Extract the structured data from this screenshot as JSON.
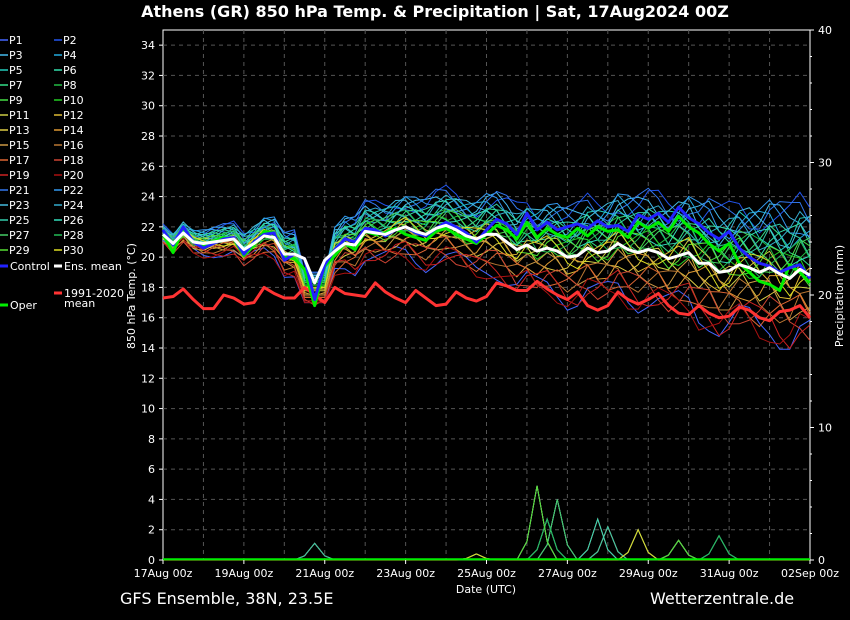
{
  "chart_data": {
    "type": "line",
    "title": "Athens  (GR)  850 hPa Temp. & Precipitation | Sat, 17Aug2024 00Z",
    "xlabel": "Date (UTC)",
    "ylabel": "850 hPa Temp. (°C)",
    "y2label": "Precipitation (mm)",
    "ylim": [
      0,
      35
    ],
    "y2lim": [
      0,
      40
    ],
    "yticks": [
      0,
      2,
      4,
      6,
      8,
      10,
      12,
      14,
      16,
      18,
      20,
      22,
      24,
      26,
      28,
      30,
      32,
      34
    ],
    "y2ticks": [
      0,
      10,
      20,
      30,
      40
    ],
    "x_tick_labels": [
      "17Aug 00z",
      "19Aug 00z",
      "21Aug 00z",
      "23Aug 00z",
      "25Aug 00z",
      "27Aug 00z",
      "29Aug 00z",
      "31Aug 00z",
      "02Sep 00z"
    ],
    "x_range_hours": [
      0,
      384
    ],
    "step_hours": 6,
    "grid": true,
    "legend_position": "left",
    "series": [
      {
        "name": "Control",
        "color": "#2222ff",
        "width": 3,
        "anchors": [
          [
            0,
            21.8
          ],
          [
            6,
            20.8
          ],
          [
            12,
            22
          ],
          [
            18,
            21
          ],
          [
            24,
            20.6
          ],
          [
            36,
            21.2
          ],
          [
            42,
            21.3
          ],
          [
            48,
            20.2
          ],
          [
            54,
            21
          ],
          [
            60,
            21.5
          ],
          [
            66,
            21.6
          ],
          [
            72,
            19.8
          ],
          [
            78,
            20.2
          ],
          [
            84,
            19.9
          ],
          [
            90,
            17.2
          ],
          [
            96,
            19.5
          ],
          [
            102,
            20.5
          ],
          [
            108,
            21.2
          ],
          [
            114,
            21
          ],
          [
            120,
            21.9
          ],
          [
            126,
            21.8
          ],
          [
            132,
            21.4
          ],
          [
            138,
            21.8
          ],
          [
            144,
            22
          ],
          [
            150,
            21.6
          ],
          [
            156,
            21.4
          ],
          [
            162,
            21.9
          ],
          [
            168,
            22.3
          ],
          [
            174,
            22
          ],
          [
            180,
            21.6
          ],
          [
            186,
            21
          ],
          [
            192,
            21.8
          ],
          [
            198,
            22.5
          ],
          [
            204,
            22.2
          ],
          [
            210,
            21.5
          ],
          [
            216,
            22.9
          ],
          [
            222,
            21.8
          ],
          [
            228,
            22.3
          ],
          [
            234,
            21.8
          ],
          [
            240,
            22
          ],
          [
            246,
            22.2
          ],
          [
            252,
            21.9
          ],
          [
            258,
            22.4
          ],
          [
            264,
            22
          ],
          [
            270,
            22.1
          ],
          [
            276,
            21.7
          ],
          [
            282,
            22.8
          ],
          [
            288,
            22.5
          ],
          [
            294,
            22.9
          ],
          [
            300,
            22.3
          ],
          [
            306,
            23.3
          ],
          [
            312,
            22.6
          ],
          [
            318,
            22.2
          ],
          [
            324,
            21.6
          ],
          [
            330,
            21.2
          ],
          [
            336,
            21.7
          ],
          [
            342,
            20.6
          ],
          [
            348,
            20
          ],
          [
            354,
            19.6
          ],
          [
            360,
            19.4
          ],
          [
            366,
            19
          ],
          [
            372,
            19.3
          ],
          [
            378,
            19.5
          ],
          [
            384,
            18.6
          ]
        ]
      },
      {
        "name": "Oper",
        "color": "#00ee00",
        "width": 3,
        "anchors": [
          [
            0,
            21.5
          ],
          [
            6,
            20.3
          ],
          [
            12,
            21.9
          ],
          [
            18,
            21
          ],
          [
            24,
            20.8
          ],
          [
            36,
            21.3
          ],
          [
            42,
            21.2
          ],
          [
            48,
            20.1
          ],
          [
            54,
            20.8
          ],
          [
            60,
            21.7
          ],
          [
            66,
            21.6
          ],
          [
            72,
            20
          ],
          [
            78,
            19.9
          ],
          [
            84,
            19.2
          ],
          [
            90,
            16.8
          ],
          [
            96,
            19.4
          ],
          [
            102,
            20.1
          ],
          [
            108,
            20.9
          ],
          [
            114,
            20.5
          ],
          [
            120,
            21.7
          ],
          [
            126,
            21.5
          ],
          [
            132,
            21.6
          ],
          [
            138,
            21.9
          ],
          [
            144,
            21.5
          ],
          [
            150,
            21.3
          ],
          [
            156,
            21.1
          ],
          [
            162,
            21.7
          ],
          [
            168,
            21.9
          ],
          [
            174,
            21.5
          ],
          [
            180,
            21.2
          ],
          [
            186,
            20.9
          ],
          [
            192,
            21.5
          ],
          [
            198,
            22.1
          ],
          [
            204,
            21.8
          ],
          [
            210,
            21.2
          ],
          [
            216,
            22.3
          ],
          [
            222,
            21.3
          ],
          [
            228,
            21.9
          ],
          [
            234,
            21.5
          ],
          [
            240,
            21.3
          ],
          [
            246,
            21.9
          ],
          [
            252,
            21.4
          ],
          [
            258,
            22
          ],
          [
            264,
            21.7
          ],
          [
            270,
            21.8
          ],
          [
            276,
            21.3
          ],
          [
            282,
            22.3
          ],
          [
            288,
            21.9
          ],
          [
            294,
            22.3
          ],
          [
            300,
            21.7
          ],
          [
            306,
            22.7
          ],
          [
            312,
            22
          ],
          [
            318,
            21.6
          ],
          [
            324,
            20.9
          ],
          [
            330,
            20.4
          ],
          [
            336,
            20.9
          ],
          [
            342,
            19.6
          ],
          [
            348,
            19
          ],
          [
            354,
            18.4
          ],
          [
            360,
            18.2
          ],
          [
            366,
            17.8
          ],
          [
            372,
            19.5
          ],
          [
            378,
            19
          ],
          [
            384,
            18.3
          ]
        ]
      },
      {
        "name": "Ens. mean",
        "color": "#ffffff",
        "width": 3,
        "anchors": [
          [
            0,
            21.5
          ],
          [
            6,
            20.9
          ],
          [
            12,
            21.6
          ],
          [
            18,
            21
          ],
          [
            24,
            20.9
          ],
          [
            30,
            21
          ],
          [
            36,
            21.1
          ],
          [
            42,
            21.2
          ],
          [
            48,
            20.5
          ],
          [
            54,
            20.9
          ],
          [
            60,
            21.4
          ],
          [
            66,
            21.3
          ],
          [
            72,
            20.2
          ],
          [
            78,
            20.2
          ],
          [
            84,
            19.9
          ],
          [
            90,
            18.3
          ],
          [
            96,
            19.8
          ],
          [
            102,
            20.4
          ],
          [
            108,
            20.9
          ],
          [
            114,
            20.8
          ],
          [
            120,
            21.7
          ],
          [
            126,
            21.6
          ],
          [
            132,
            21.5
          ],
          [
            138,
            21.8
          ],
          [
            144,
            22
          ],
          [
            150,
            21.7
          ],
          [
            156,
            21.5
          ],
          [
            162,
            21.9
          ],
          [
            168,
            22.1
          ],
          [
            174,
            21.8
          ],
          [
            180,
            21.4
          ],
          [
            186,
            21.2
          ],
          [
            192,
            21.5
          ],
          [
            198,
            21.5
          ],
          [
            204,
            21
          ],
          [
            210,
            20.5
          ],
          [
            216,
            20.8
          ],
          [
            222,
            20.4
          ],
          [
            228,
            20.6
          ],
          [
            234,
            20.4
          ],
          [
            240,
            20
          ],
          [
            246,
            20.1
          ],
          [
            252,
            20.6
          ],
          [
            258,
            20.3
          ],
          [
            264,
            20.4
          ],
          [
            270,
            20.9
          ],
          [
            276,
            20.5
          ],
          [
            282,
            20.3
          ],
          [
            288,
            20.5
          ],
          [
            294,
            20.3
          ],
          [
            300,
            19.9
          ],
          [
            306,
            20.1
          ],
          [
            312,
            20.3
          ],
          [
            318,
            19.6
          ],
          [
            324,
            19.6
          ],
          [
            330,
            19
          ],
          [
            336,
            19.1
          ],
          [
            342,
            19.5
          ],
          [
            348,
            19.3
          ],
          [
            354,
            19
          ],
          [
            360,
            19.3
          ],
          [
            366,
            18.9
          ],
          [
            372,
            18.6
          ],
          [
            378,
            19.2
          ],
          [
            384,
            18.8
          ]
        ]
      },
      {
        "name": "1991-2020 mean",
        "color": "#ff3333",
        "width": 3,
        "anchors": [
          [
            0,
            17.3
          ],
          [
            6,
            17.4
          ],
          [
            12,
            17.9
          ],
          [
            18,
            17.2
          ],
          [
            24,
            16.6
          ],
          [
            30,
            16.6
          ],
          [
            36,
            17.5
          ],
          [
            42,
            17.3
          ],
          [
            48,
            16.9
          ],
          [
            54,
            17
          ],
          [
            60,
            18
          ],
          [
            66,
            17.6
          ],
          [
            72,
            17.3
          ],
          [
            78,
            17.3
          ],
          [
            84,
            18
          ],
          [
            90,
            17.5
          ],
          [
            96,
            17
          ],
          [
            102,
            18
          ],
          [
            108,
            17.6
          ],
          [
            114,
            17.5
          ],
          [
            120,
            17.4
          ],
          [
            126,
            18.3
          ],
          [
            132,
            17.7
          ],
          [
            138,
            17.3
          ],
          [
            144,
            17
          ],
          [
            150,
            17.8
          ],
          [
            156,
            17.3
          ],
          [
            162,
            16.8
          ],
          [
            168,
            16.9
          ],
          [
            174,
            17.7
          ],
          [
            180,
            17.3
          ],
          [
            186,
            17.1
          ],
          [
            192,
            17.4
          ],
          [
            198,
            18.3
          ],
          [
            204,
            18.1
          ],
          [
            210,
            17.8
          ],
          [
            216,
            17.8
          ],
          [
            222,
            18.4
          ],
          [
            228,
            17.9
          ],
          [
            234,
            17.5
          ],
          [
            240,
            17.2
          ],
          [
            246,
            17.7
          ],
          [
            252,
            16.8
          ],
          [
            258,
            16.5
          ],
          [
            264,
            16.8
          ],
          [
            270,
            17.7
          ],
          [
            276,
            17.2
          ],
          [
            282,
            16.9
          ],
          [
            288,
            17.2
          ],
          [
            294,
            17.6
          ],
          [
            300,
            16.8
          ],
          [
            306,
            16.3
          ],
          [
            312,
            16.2
          ],
          [
            318,
            16.8
          ],
          [
            324,
            16.3
          ],
          [
            330,
            16
          ],
          [
            336,
            16.1
          ],
          [
            342,
            16.7
          ],
          [
            348,
            16.5
          ],
          [
            354,
            16
          ],
          [
            360,
            15.8
          ],
          [
            366,
            16.4
          ],
          [
            372,
            16.5
          ],
          [
            378,
            16.8
          ],
          [
            384,
            16
          ]
        ]
      }
    ],
    "members": [
      {
        "name": "P1",
        "color": "#4466ff"
      },
      {
        "name": "P2",
        "color": "#2255ee"
      },
      {
        "name": "P3",
        "color": "#44bbee"
      },
      {
        "name": "P4",
        "color": "#22aadd"
      },
      {
        "name": "P5",
        "color": "#22ccbb"
      },
      {
        "name": "P6",
        "color": "#33ddaa"
      },
      {
        "name": "P7",
        "color": "#33dd88"
      },
      {
        "name": "P8",
        "color": "#22bb44"
      },
      {
        "name": "P9",
        "color": "#44dd44"
      },
      {
        "name": "P10",
        "color": "#22cc22"
      },
      {
        "name": "P11",
        "color": "#cccc44"
      },
      {
        "name": "P12",
        "color": "#ddbb33"
      },
      {
        "name": "P13",
        "color": "#ddcc44"
      },
      {
        "name": "P14",
        "color": "#dd9933"
      },
      {
        "name": "P15",
        "color": "#cc9944"
      },
      {
        "name": "P16",
        "color": "#bb7733"
      },
      {
        "name": "P17",
        "color": "#dd6633"
      },
      {
        "name": "P18",
        "color": "#cc4433"
      },
      {
        "name": "P19",
        "color": "#cc2222"
      },
      {
        "name": "P20",
        "color": "#aa1111"
      },
      {
        "name": "P21",
        "color": "#3377ee"
      },
      {
        "name": "P22",
        "color": "#3399ee"
      },
      {
        "name": "P23",
        "color": "#44bbdd"
      },
      {
        "name": "P24",
        "color": "#33aacc"
      },
      {
        "name": "P25",
        "color": "#33ccaa"
      },
      {
        "name": "P26",
        "color": "#33ddbb"
      },
      {
        "name": "P27",
        "color": "#44cc66"
      },
      {
        "name": "P28",
        "color": "#22bb55"
      },
      {
        "name": "P29",
        "color": "#55dd33"
      },
      {
        "name": "P30",
        "color": "#dddd22"
      }
    ],
    "precip_peaks": [
      [
        90,
        1.1
      ],
      [
        186,
        0.4
      ],
      [
        222,
        4.9
      ],
      [
        228,
        2.7
      ],
      [
        234,
        4
      ],
      [
        258,
        2.7
      ],
      [
        264,
        2.2
      ],
      [
        282,
        2
      ],
      [
        306,
        1.3
      ],
      [
        330,
        1.6
      ]
    ]
  },
  "footer": {
    "model": "GFS Ensemble, 38N, 23.5E",
    "source": "Wetterzentrale.de"
  }
}
